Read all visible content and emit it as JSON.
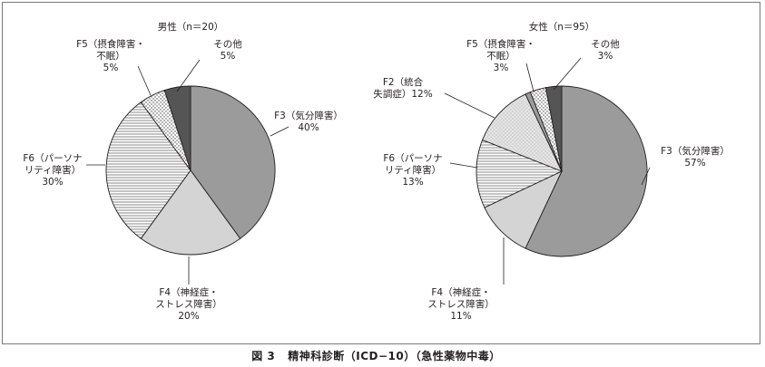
{
  "figure": {
    "caption_number": "図 3",
    "caption_title": "精神科診断（ICD−10）（急性薬物中毒）"
  },
  "chart_data": [
    {
      "type": "pie",
      "title": "男性（n＝20）",
      "start": "12 o'clock",
      "direction": "clockwise",
      "slices": [
        {
          "key": "f3",
          "label": [
            "F3（気分障害）",
            "40%"
          ],
          "value": 40,
          "fill": "#9b9b9b",
          "pattern": "solid"
        },
        {
          "key": "f4",
          "label": [
            "F4（神経症・",
            "ストレス障害）",
            "20%"
          ],
          "value": 20,
          "fill": "#d4d4d4",
          "pattern": "solid"
        },
        {
          "key": "f6",
          "label": [
            "F6（パーソナ",
            "リティ障害）",
            "30%"
          ],
          "value": 30,
          "fill": "#ffffff",
          "pattern": "hstripes"
        },
        {
          "key": "f5",
          "label": [
            "F5（摂食障害・",
            "不眠）",
            "5%"
          ],
          "value": 5,
          "fill": "#ffffff",
          "pattern": "dots"
        },
        {
          "key": "other",
          "label": [
            "その他",
            "5%"
          ],
          "value": 5,
          "fill": "#555555",
          "pattern": "solid"
        }
      ]
    },
    {
      "type": "pie",
      "title": "女性（n＝95）",
      "start": "12 o'clock",
      "direction": "clockwise",
      "slices": [
        {
          "key": "f3",
          "label": [
            "F3（気分障害）",
            "57%"
          ],
          "value": 57,
          "fill": "#9b9b9b",
          "pattern": "solid"
        },
        {
          "key": "f4",
          "label": [
            "F4（神経症・",
            "ストレス障害）",
            "11%"
          ],
          "value": 11,
          "fill": "#d4d4d4",
          "pattern": "solid"
        },
        {
          "key": "f6",
          "label": [
            "F6（パーソナ",
            "リティ障害）",
            "13%"
          ],
          "value": 13,
          "fill": "#ffffff",
          "pattern": "hstripes"
        },
        {
          "key": "f2",
          "label": [
            "F2（統合",
            "失調症）12%"
          ],
          "value": 12,
          "fill": "#d4d4d4",
          "pattern": "dots"
        },
        {
          "key": "unlabeled",
          "label": [],
          "value": 1,
          "fill": "#9b9b9b",
          "pattern": "solid"
        },
        {
          "key": "f5",
          "label": [
            "F5（摂食障害・",
            "不眠）",
            "3%"
          ],
          "value": 3,
          "fill": "#ffffff",
          "pattern": "dots"
        },
        {
          "key": "other",
          "label": [
            "その他",
            "3%"
          ],
          "value": 3,
          "fill": "#555555",
          "pattern": "solid"
        }
      ]
    }
  ]
}
